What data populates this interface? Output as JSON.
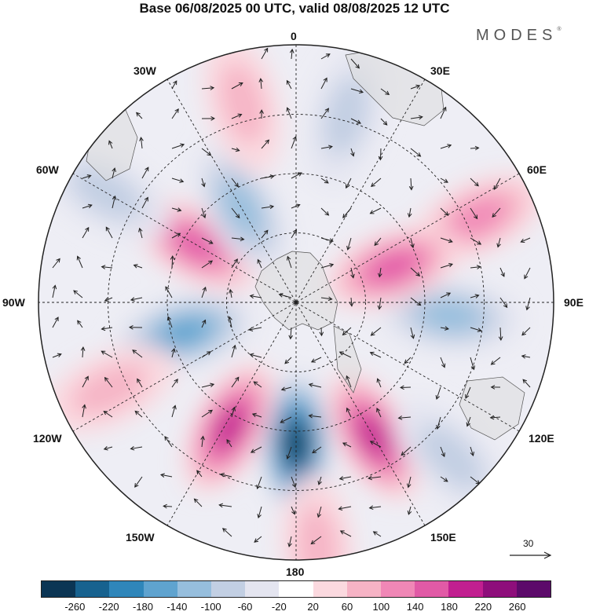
{
  "title": "Base 06/08/2025 00 UTC, valid 08/08/2025 12 UTC",
  "logo": "MODES",
  "logo_mark": "®",
  "longitude_labels": {
    "n": "0",
    "ne": "30E",
    "e1": "60E",
    "e": "90E",
    "se1": "120E",
    "se": "150E",
    "s": "180",
    "sw": "150W",
    "sw1": "120W",
    "w": "90W",
    "nw1": "60W",
    "nw": "30W"
  },
  "reference_vector": {
    "label": "30"
  },
  "colorbar": {
    "colors": [
      "#0b3554",
      "#17628f",
      "#2f86ba",
      "#5fa3cf",
      "#96bedd",
      "#c2cfe3",
      "#e4e5f0",
      "#ffffff",
      "#fbd9df",
      "#f6b3c5",
      "#f087b6",
      "#e15aa6",
      "#c11f90",
      "#8e0e7b",
      "#5c0a6a"
    ],
    "ticks": [
      "-260",
      "-220",
      "-180",
      "-140",
      "-100",
      "-60",
      "-20",
      "20",
      "60",
      "100",
      "140",
      "180",
      "220",
      "260"
    ]
  },
  "anomaly_field": {
    "units_note": "",
    "centers": [
      {
        "lon_deg": 180,
        "lat_ring": 0.55,
        "value": -260
      },
      {
        "lon_deg": 208,
        "lat_ring": 0.55,
        "value": 200
      },
      {
        "lon_deg": 150,
        "lat_ring": 0.6,
        "value": 180
      },
      {
        "lon_deg": 255,
        "lat_ring": 0.45,
        "value": -140
      },
      {
        "lon_deg": 95,
        "lat_ring": 0.6,
        "value": -120
      },
      {
        "lon_deg": 65,
        "lat_ring": 0.78,
        "value": 120
      },
      {
        "lon_deg": 70,
        "lat_ring": 0.4,
        "value": 140
      },
      {
        "lon_deg": 300,
        "lat_ring": 0.45,
        "value": 140
      },
      {
        "lon_deg": 330,
        "lat_ring": 0.42,
        "value": -120
      },
      {
        "lon_deg": 345,
        "lat_ring": 0.8,
        "value": 80
      },
      {
        "lon_deg": 15,
        "lat_ring": 0.75,
        "value": -60
      },
      {
        "lon_deg": 300,
        "lat_ring": 0.85,
        "value": -60
      },
      {
        "lon_deg": 175,
        "lat_ring": 0.95,
        "value": 80
      },
      {
        "lon_deg": 135,
        "lat_ring": 0.85,
        "value": -80
      },
      {
        "lon_deg": 245,
        "lat_ring": 0.8,
        "value": 60
      }
    ]
  }
}
